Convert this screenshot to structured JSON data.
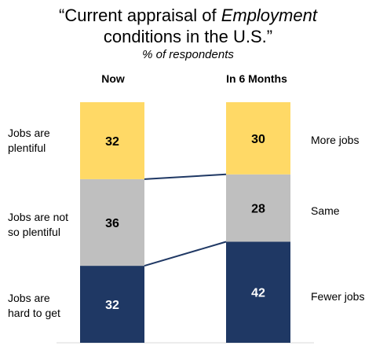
{
  "chart_data": {
    "type": "bar",
    "stacked": true,
    "title_line1_prefix": "“Current appraisal of ",
    "title_line1_emph": "Employment",
    "title_line2": "conditions in the U.S.”",
    "subtitle": "% of respondents",
    "categories": [
      "Now",
      "In 6 Months"
    ],
    "series": [
      {
        "name": "Jobs are hard to get / Fewer jobs",
        "values": [
          32,
          42
        ],
        "color": "#1f3864",
        "text_color": "#ffffff"
      },
      {
        "name": "Jobs are not so plentiful / Same",
        "values": [
          36,
          28
        ],
        "color": "#bfbfbf",
        "text_color": "#000000"
      },
      {
        "name": "Jobs are plentiful / More jobs",
        "values": [
          32,
          30
        ],
        "color": "#ffd966",
        "text_color": "#000000"
      }
    ],
    "left_labels": [
      "Jobs are\nplentiful",
      "Jobs are not\nso plentiful",
      "Jobs are\nhard to get"
    ],
    "right_labels": [
      "More jobs",
      "Same",
      "Fewer jobs"
    ],
    "ylim": [
      0,
      100
    ]
  }
}
